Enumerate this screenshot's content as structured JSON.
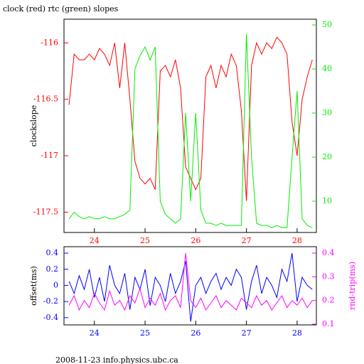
{
  "title": "clock (red) rtc (green) slopes",
  "footer": "2008-11-23 info.physics.ubc.ca",
  "chart_data": [
    {
      "type": "line",
      "ylabel": "clockslope",
      "x": [
        23.5,
        23.6,
        23.7,
        23.8,
        23.9,
        24.0,
        24.1,
        24.2,
        24.3,
        24.4,
        24.5,
        24.6,
        24.7,
        24.8,
        24.9,
        25.0,
        25.1,
        25.2,
        25.3,
        25.4,
        25.5,
        25.6,
        25.7,
        25.8,
        25.9,
        26.0,
        26.1,
        26.2,
        26.3,
        26.4,
        26.5,
        26.6,
        26.7,
        26.8,
        26.9,
        27.0,
        27.1,
        27.2,
        27.3,
        27.4,
        27.5,
        27.6,
        27.7,
        27.8,
        27.9,
        28.0,
        28.1,
        28.2,
        28.3
      ],
      "xlim": [
        23.4,
        28.38
      ],
      "xticks": [
        24,
        25,
        26,
        27,
        28
      ],
      "ylim": [
        -117.68,
        -115.79
      ],
      "yticks": [
        -116,
        -116.5,
        -117,
        -117.5
      ],
      "y2lim": [
        2.9,
        51.3
      ],
      "y2ticks": [
        10,
        20,
        30,
        40,
        50
      ],
      "series": [
        {
          "color": "#ff0000",
          "values": [
            -116.55,
            -116.1,
            -116.15,
            -116.15,
            -116.1,
            -116.15,
            -116.05,
            -116.1,
            -116.2,
            -116.0,
            -116.4,
            -116.0,
            -116.5,
            -117.05,
            -117.2,
            -117.25,
            -117.2,
            -117.3,
            -116.25,
            -116.2,
            -116.3,
            -116.15,
            -116.4,
            -117.1,
            -117.2,
            -117.3,
            -117.2,
            -116.3,
            -116.2,
            -116.4,
            -116.2,
            -116.3,
            -116.1,
            -116.2,
            -116.6,
            -117.4,
            -116.2,
            -116.0,
            -116.1,
            -116.0,
            -116.05,
            -115.95,
            -116.0,
            -116.1,
            -116.7,
            -117.0,
            -116.5,
            -116.3,
            -116.15
          ]
        },
        {
          "color": "#00ee00",
          "axis": "y2",
          "values": [
            6,
            7.5,
            6.5,
            6,
            6.5,
            6,
            6,
            6.5,
            6,
            6,
            6.5,
            7,
            8,
            40,
            43,
            45,
            42,
            45,
            10,
            7,
            6,
            5,
            6,
            30,
            10,
            30,
            8,
            5,
            5,
            4.5,
            5,
            4.5,
            4.5,
            4.5,
            4.5,
            48,
            20,
            5,
            4.5,
            4.5,
            4,
            4.5,
            4,
            4,
            20,
            35,
            6,
            4.5,
            4
          ]
        }
      ]
    },
    {
      "type": "line",
      "ylabel": "offset(ms)",
      "y2label": "rnd-trip(ms)",
      "x": [
        23.5,
        23.6,
        23.7,
        23.8,
        23.9,
        24.0,
        24.1,
        24.2,
        24.3,
        24.4,
        24.5,
        24.6,
        24.7,
        24.8,
        24.9,
        25.0,
        25.1,
        25.2,
        25.3,
        25.4,
        25.5,
        25.6,
        25.7,
        25.8,
        25.9,
        26.0,
        26.1,
        26.2,
        26.3,
        26.4,
        26.5,
        26.6,
        26.7,
        26.8,
        26.9,
        27.0,
        27.1,
        27.2,
        27.3,
        27.4,
        27.5,
        27.6,
        27.7,
        27.8,
        27.9,
        28.0,
        28.1,
        28.2,
        28.3
      ],
      "xlim": [
        23.4,
        28.38
      ],
      "xticks": [
        24,
        25,
        26,
        27,
        28
      ],
      "ylim": [
        -0.49,
        0.48
      ],
      "yticks": [
        -0.4,
        -0.2,
        0,
        0.2,
        0.4
      ],
      "y2lim": [
        0.097,
        0.427
      ],
      "y2ticks": [
        0.1,
        0.2,
        0.3,
        0.4
      ],
      "series": [
        {
          "color": "#0000ff",
          "values": [
            0.05,
            -0.1,
            0.12,
            -0.05,
            0.2,
            -0.15,
            0.1,
            -0.2,
            0.25,
            0.0,
            -0.1,
            0.15,
            -0.3,
            0.1,
            -0.05,
            0.2,
            -0.25,
            0.1,
            0.0,
            -0.2,
            0.15,
            -0.1,
            0.05,
            0.3,
            -0.45,
            0.0,
            0.1,
            -0.1,
            0.05,
            0.15,
            -0.05,
            0.1,
            0.0,
            0.2,
            0.1,
            -0.3,
            0.05,
            0.25,
            -0.1,
            0.1,
            0.0,
            -0.15,
            0.2,
            0.05,
            0.4,
            -0.2,
            0.1,
            0.0,
            -0.05
          ]
        },
        {
          "color": "#ff00ff",
          "axis": "y2",
          "values": [
            0.18,
            0.22,
            0.16,
            0.2,
            0.17,
            0.23,
            0.19,
            0.16,
            0.24,
            0.18,
            0.2,
            0.16,
            0.22,
            0.19,
            0.25,
            0.17,
            0.21,
            0.18,
            0.23,
            0.16,
            0.2,
            0.22,
            0.17,
            0.4,
            0.2,
            0.17,
            0.21,
            0.16,
            0.19,
            0.22,
            0.17,
            0.2,
            0.18,
            0.16,
            0.21,
            0.19,
            0.17,
            0.22,
            0.18,
            0.2,
            0.16,
            0.19,
            0.22,
            0.17,
            0.2,
            0.18,
            0.21,
            0.17,
            0.2
          ]
        }
      ]
    }
  ]
}
